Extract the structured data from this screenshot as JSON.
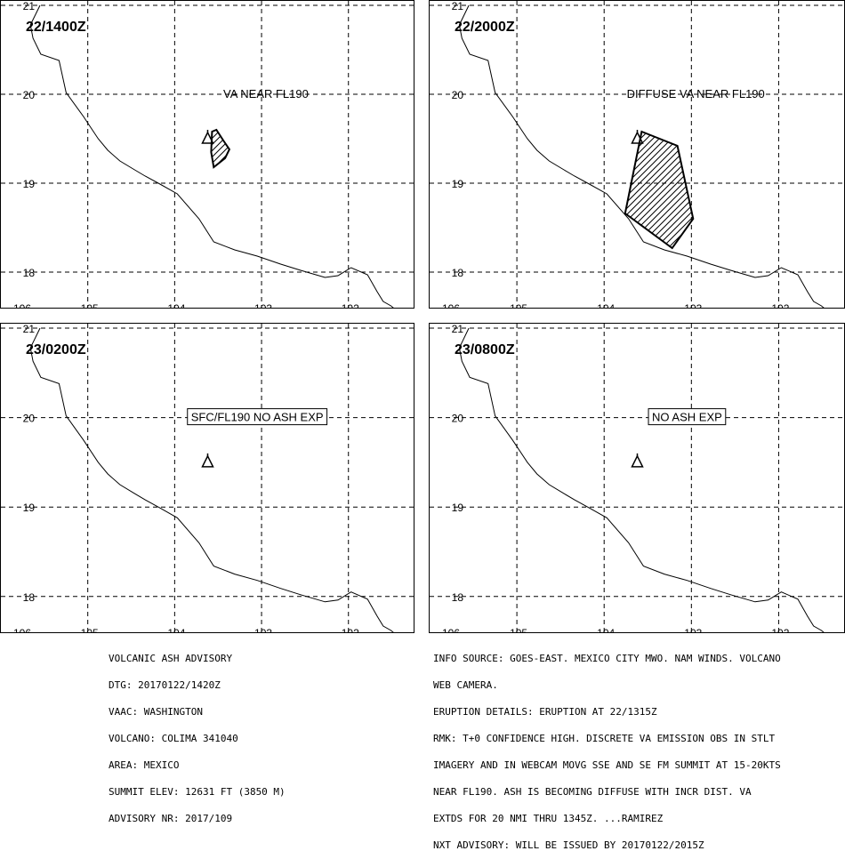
{
  "panels": [
    {
      "time": "22/1400Z",
      "label": "VA NEAR FL190",
      "boxed": false,
      "ash": [
        [
          -103.57,
          19.58
        ],
        [
          -103.52,
          19.6
        ],
        [
          -103.44,
          19.48
        ],
        [
          -103.37,
          19.38
        ],
        [
          -103.42,
          19.28
        ],
        [
          -103.55,
          19.18
        ],
        [
          -103.58,
          19.35
        ]
      ]
    },
    {
      "time": "22/2000Z",
      "label": "DIFFUSE VA NEAR FL190",
      "boxed": false,
      "ash": [
        [
          -103.57,
          19.58
        ],
        [
          -103.16,
          19.42
        ],
        [
          -102.98,
          18.6
        ],
        [
          -103.22,
          18.27
        ],
        [
          -103.76,
          18.66
        ]
      ]
    },
    {
      "time": "23/0200Z",
      "label": "SFC/FL190  NO  ASH  EXP",
      "boxed": true,
      "ash": null
    },
    {
      "time": "23/0800Z",
      "label": "NO  ASH  EXP",
      "boxed": true,
      "ash": null
    }
  ],
  "map": {
    "lon_ticks": [
      "-106",
      "-105",
      "-104",
      "-103",
      "-102"
    ],
    "lat_ticks": [
      "21",
      "20",
      "19",
      "18"
    ],
    "lon_range": [
      -106,
      -101.25
    ],
    "lat_range": [
      17.6,
      21.05
    ],
    "volcano": {
      "lon": -103.62,
      "lat": 19.51
    },
    "coastline": [
      [
        -105.55,
        21.0
      ],
      [
        -105.66,
        20.78
      ],
      [
        -105.63,
        20.63
      ],
      [
        -105.54,
        20.45
      ],
      [
        -105.33,
        20.38
      ],
      [
        -105.25,
        20.02
      ],
      [
        -105.05,
        19.75
      ],
      [
        -104.88,
        19.5
      ],
      [
        -104.77,
        19.37
      ],
      [
        -104.63,
        19.25
      ],
      [
        -104.46,
        19.15
      ],
      [
        -104.34,
        19.08
      ],
      [
        -104.17,
        18.99
      ],
      [
        -103.97,
        18.88
      ],
      [
        -103.72,
        18.6
      ],
      [
        -103.55,
        18.34
      ],
      [
        -103.31,
        18.25
      ],
      [
        -103.05,
        18.18
      ],
      [
        -102.78,
        18.09
      ],
      [
        -102.55,
        18.02
      ],
      [
        -102.27,
        17.94
      ],
      [
        -102.12,
        17.96
      ],
      [
        -101.97,
        18.05
      ],
      [
        -101.78,
        17.97
      ],
      [
        -101.67,
        17.78
      ],
      [
        -101.6,
        17.67
      ],
      [
        -101.51,
        17.62
      ],
      [
        -101.45,
        17.57
      ],
      [
        -101.38,
        17.55
      ]
    ]
  },
  "advisory_left": [
    "VOLCANIC ASH ADVISORY",
    "DTG: 20170122/1420Z",
    "VAAC: WASHINGTON",
    "VOLCANO: COLIMA 341040",
    "AREA: MEXICO",
    "SUMMIT ELEV: 12631 FT (3850 M)",
    "ADVISORY NR: 2017/109"
  ],
  "advisory_right": [
    "INFO SOURCE: GOES-EAST. MEXICO CITY MWO. NAM WINDS. VOLCANO",
    "WEB CAMERA.",
    "ERUPTION DETAILS: ERUPTION AT 22/1315Z",
    "RMK: T+0 CONFIDENCE HIGH. DISCRETE VA EMISSION OBS IN STLT",
    "IMAGERY AND IN WEBCAM MOVG SSE AND SE FM SUMMIT AT 15-20KTS",
    "NEAR FL190. ASH IS BECOMING DIFFUSE WITH INCR DIST. VA",
    "EXTDS FOR 20 NMI THRU 1345Z. ...RAMIREZ",
    "NXT ADVISORY: WILL BE ISSUED BY 20170122/2015Z"
  ]
}
